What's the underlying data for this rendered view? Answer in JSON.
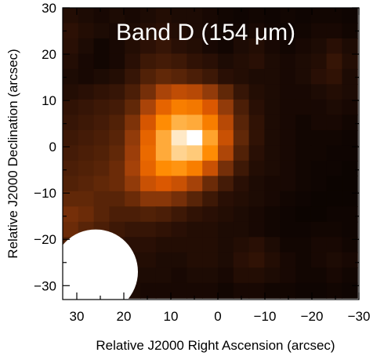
{
  "chart_data": {
    "type": "heatmap",
    "title": "Band D (154 μm)",
    "xlabel": "Relative J2000 Right Ascension (arcsec)",
    "ylabel": "Relative J2000 Declination (arcsec)",
    "xlim": [
      33,
      -30
    ],
    "ylim": [
      -33,
      30
    ],
    "x_ticks": [
      30,
      20,
      10,
      0,
      -10,
      -20,
      -30
    ],
    "x_tick_labels": [
      "30",
      "20",
      "10",
      "0",
      "−10",
      "−20",
      "−30"
    ],
    "y_ticks": [
      30,
      20,
      10,
      0,
      -10,
      -20,
      -30
    ],
    "y_tick_labels": [
      "30",
      "20",
      "10",
      "0",
      "−10",
      "−20",
      "−30"
    ],
    "grid": false,
    "colormap": [
      "#000000",
      "#2a0f05",
      "#5a2508",
      "#a0400a",
      "#e05a00",
      "#ff8a00",
      "#ffc060",
      "#ffffff"
    ],
    "peak_position": [
      3,
      1
    ],
    "beam": {
      "shape": "circle",
      "center": [
        26,
        -27
      ],
      "diameter": 18,
      "color": "#ffffff"
    },
    "pixel_grid": {
      "x_start": 33,
      "x_step": -3.3,
      "y_start": 30,
      "y_step": -3.3,
      "values": [
        [
          0.12,
          0.1,
          0.08,
          0.1,
          0.08,
          0.1,
          0.12,
          0.1,
          0.1,
          0.08,
          0.06,
          0.05,
          0.06,
          0.05,
          0.06,
          0.05,
          0.06,
          0.06,
          0.05
        ],
        [
          0.15,
          0.12,
          0.1,
          0.08,
          0.1,
          0.12,
          0.14,
          0.12,
          0.1,
          0.08,
          0.06,
          0.06,
          0.08,
          0.06,
          0.05,
          0.06,
          0.08,
          0.08,
          0.06
        ],
        [
          0.14,
          0.1,
          0.06,
          0.08,
          0.12,
          0.15,
          0.18,
          0.14,
          0.12,
          0.08,
          0.06,
          0.1,
          0.12,
          0.08,
          0.06,
          0.08,
          0.1,
          0.14,
          0.1
        ],
        [
          0.12,
          0.08,
          0.06,
          0.08,
          0.14,
          0.2,
          0.22,
          0.2,
          0.16,
          0.14,
          0.1,
          0.12,
          0.14,
          0.1,
          0.08,
          0.1,
          0.12,
          0.18,
          0.12
        ],
        [
          0.1,
          0.08,
          0.1,
          0.12,
          0.18,
          0.26,
          0.3,
          0.28,
          0.24,
          0.2,
          0.14,
          0.12,
          0.1,
          0.1,
          0.08,
          0.1,
          0.14,
          0.16,
          0.1
        ],
        [
          0.12,
          0.14,
          0.16,
          0.18,
          0.24,
          0.34,
          0.45,
          0.5,
          0.48,
          0.4,
          0.3,
          0.18,
          0.12,
          0.1,
          0.08,
          0.08,
          0.1,
          0.12,
          0.1
        ],
        [
          0.16,
          0.18,
          0.2,
          0.22,
          0.3,
          0.45,
          0.6,
          0.68,
          0.66,
          0.56,
          0.4,
          0.24,
          0.14,
          0.1,
          0.08,
          0.08,
          0.08,
          0.1,
          0.08
        ],
        [
          0.18,
          0.2,
          0.22,
          0.26,
          0.36,
          0.55,
          0.72,
          0.82,
          0.8,
          0.68,
          0.48,
          0.28,
          0.16,
          0.1,
          0.08,
          0.06,
          0.08,
          0.08,
          0.06
        ],
        [
          0.2,
          0.22,
          0.24,
          0.28,
          0.4,
          0.6,
          0.8,
          0.95,
          1.0,
          0.78,
          0.52,
          0.3,
          0.16,
          0.1,
          0.08,
          0.06,
          0.06,
          0.06,
          0.05
        ],
        [
          0.22,
          0.24,
          0.26,
          0.3,
          0.42,
          0.62,
          0.8,
          0.9,
          0.88,
          0.72,
          0.46,
          0.26,
          0.14,
          0.1,
          0.08,
          0.06,
          0.06,
          0.05,
          0.05
        ],
        [
          0.24,
          0.26,
          0.28,
          0.32,
          0.44,
          0.6,
          0.72,
          0.74,
          0.68,
          0.52,
          0.34,
          0.2,
          0.12,
          0.1,
          0.08,
          0.06,
          0.05,
          0.05,
          0.04
        ],
        [
          0.26,
          0.28,
          0.3,
          0.32,
          0.4,
          0.52,
          0.56,
          0.52,
          0.44,
          0.32,
          0.22,
          0.14,
          0.1,
          0.08,
          0.08,
          0.06,
          0.05,
          0.04,
          0.04
        ],
        [
          0.3,
          0.3,
          0.28,
          0.28,
          0.32,
          0.38,
          0.38,
          0.34,
          0.28,
          0.2,
          0.14,
          0.12,
          0.1,
          0.08,
          0.06,
          0.05,
          0.04,
          0.04,
          0.04
        ],
        [
          0.34,
          0.32,
          0.28,
          0.24,
          0.24,
          0.26,
          0.24,
          0.2,
          0.16,
          0.14,
          0.12,
          0.1,
          0.08,
          0.06,
          0.05,
          0.04,
          0.04,
          0.05,
          0.05
        ],
        [
          0.32,
          0.28,
          0.24,
          0.2,
          0.18,
          0.18,
          0.16,
          0.14,
          0.12,
          0.12,
          0.1,
          0.1,
          0.08,
          0.06,
          0.05,
          0.05,
          0.06,
          0.06,
          0.05
        ],
        [
          0.26,
          0.22,
          0.18,
          0.16,
          0.14,
          0.14,
          0.12,
          0.12,
          0.12,
          0.12,
          0.1,
          0.12,
          0.14,
          0.1,
          0.06,
          0.06,
          0.08,
          0.08,
          0.06
        ],
        [
          0.2,
          0.18,
          0.16,
          0.14,
          0.12,
          0.12,
          0.1,
          0.1,
          0.12,
          0.12,
          0.1,
          0.14,
          0.16,
          0.12,
          0.08,
          0.06,
          0.08,
          0.1,
          0.08
        ],
        [
          0.16,
          0.14,
          0.14,
          0.12,
          0.1,
          0.1,
          0.1,
          0.08,
          0.1,
          0.1,
          0.08,
          0.12,
          0.12,
          0.1,
          0.08,
          0.06,
          0.06,
          0.08,
          0.06
        ],
        [
          0.14,
          0.12,
          0.12,
          0.1,
          0.1,
          0.08,
          0.08,
          0.08,
          0.08,
          0.08,
          0.06,
          0.08,
          0.08,
          0.06,
          0.06,
          0.05,
          0.05,
          0.06,
          0.05
        ]
      ]
    }
  }
}
